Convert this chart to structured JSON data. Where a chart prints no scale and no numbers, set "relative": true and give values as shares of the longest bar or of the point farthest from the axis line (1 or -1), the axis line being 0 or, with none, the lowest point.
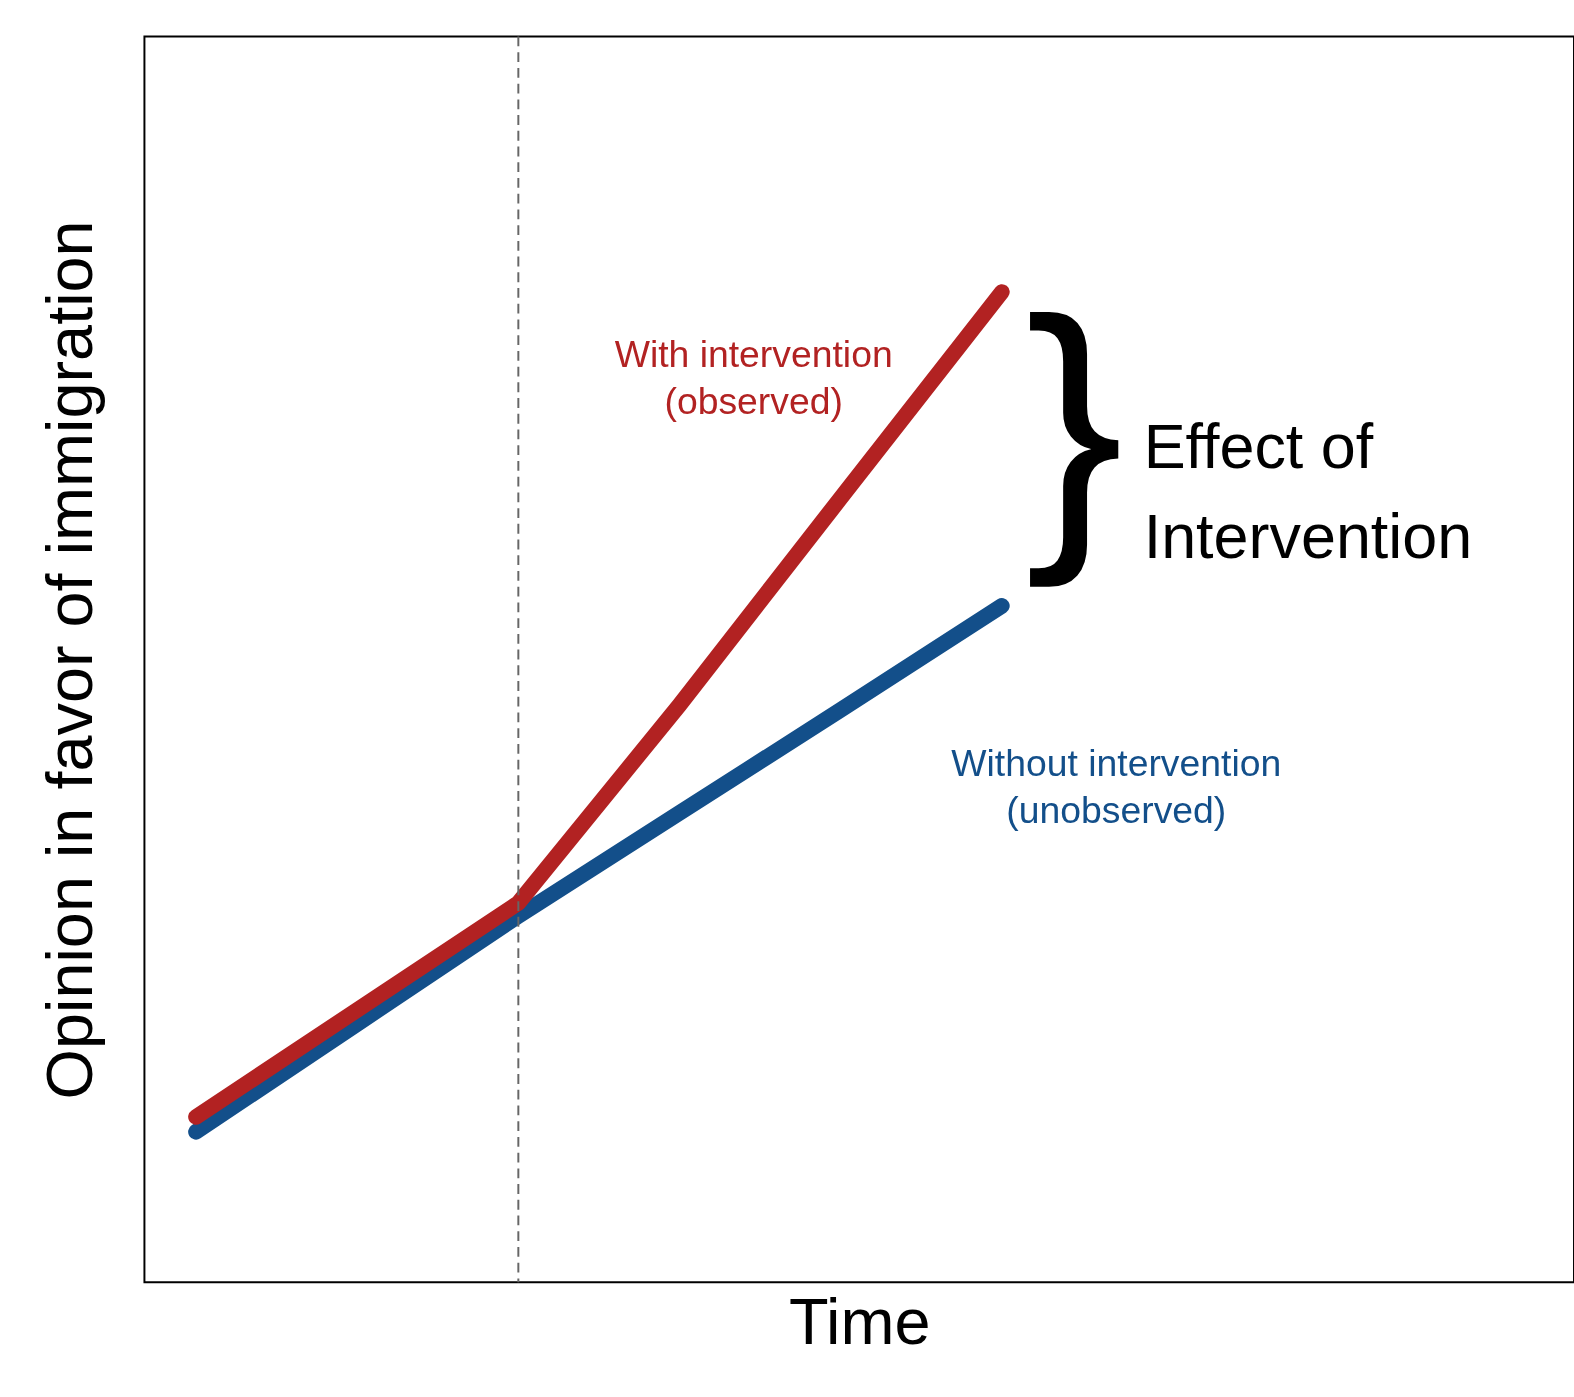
{
  "chart_data": {
    "type": "line",
    "relative": true,
    "xlabel": "Time",
    "ylabel": "Opinion in favor of immigration",
    "categories": [
      null,
      null,
      null,
      null,
      null,
      null
    ],
    "series": [
      {
        "name": "Without intervention\n(unobserved)",
        "color": "#134f8a",
        "values": [
          0.152,
          0.261,
          0.37,
          0.474,
          0.578,
          0.683
        ]
      },
      {
        "name": "With intervention\n(observed)",
        "color": "#b22222",
        "values": [
          0.167,
          0.275,
          0.383,
          0.583,
          0.792,
          1.0
        ]
      }
    ],
    "annotations": [
      "}",
      "Effect of\nIntervention"
    ],
    "grid": false,
    "legend": false,
    "line_style": "solid",
    "marker": "none"
  }
}
